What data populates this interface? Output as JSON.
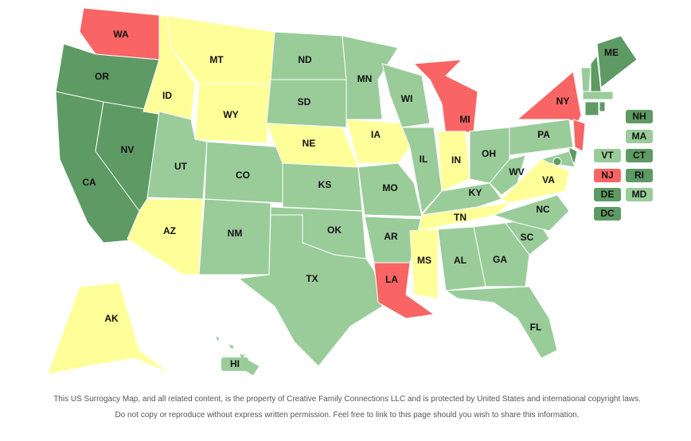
{
  "states": [
    {
      "label": "WA",
      "color": "#f96464"
    },
    {
      "label": "OR",
      "color": "#5e9a64"
    },
    {
      "label": "CA",
      "color": "#5e9a64"
    },
    {
      "label": "NV",
      "color": "#5e9a64"
    },
    {
      "label": "ID",
      "color": "#ffff99"
    },
    {
      "label": "MT",
      "color": "#ffff99"
    },
    {
      "label": "WY",
      "color": "#ffff99"
    },
    {
      "label": "UT",
      "color": "#99cc99"
    },
    {
      "label": "AZ",
      "color": "#ffff99"
    },
    {
      "label": "CO",
      "color": "#99cc99"
    },
    {
      "label": "NM",
      "color": "#99cc99"
    },
    {
      "label": "ND",
      "color": "#99cc99"
    },
    {
      "label": "SD",
      "color": "#99cc99"
    },
    {
      "label": "NE",
      "color": "#ffff99"
    },
    {
      "label": "KS",
      "color": "#99cc99"
    },
    {
      "label": "OK",
      "color": "#99cc99"
    },
    {
      "label": "TX",
      "color": "#99cc99"
    },
    {
      "label": "MN",
      "color": "#99cc99"
    },
    {
      "label": "IA",
      "color": "#ffff99"
    },
    {
      "label": "MO",
      "color": "#99cc99"
    },
    {
      "label": "AR",
      "color": "#99cc99"
    },
    {
      "label": "LA",
      "color": "#f96464"
    },
    {
      "label": "WI",
      "color": "#99cc99"
    },
    {
      "label": "IL",
      "color": "#99cc99"
    },
    {
      "label": "MI",
      "color": "#f96464"
    },
    {
      "label": "IN",
      "color": "#ffff99"
    },
    {
      "label": "OH",
      "color": "#99cc99"
    },
    {
      "label": "KY",
      "color": "#99cc99"
    },
    {
      "label": "TN",
      "color": "#ffff99"
    },
    {
      "label": "MS",
      "color": "#ffff99"
    },
    {
      "label": "AL",
      "color": "#99cc99"
    },
    {
      "label": "GA",
      "color": "#99cc99"
    },
    {
      "label": "FL",
      "color": "#99cc99"
    },
    {
      "label": "SC",
      "color": "#99cc99"
    },
    {
      "label": "NC",
      "color": "#99cc99"
    },
    {
      "label": "VA",
      "color": "#ffff99"
    },
    {
      "label": "WV",
      "color": "#99cc99"
    },
    {
      "label": "PA",
      "color": "#99cc99"
    },
    {
      "label": "NY",
      "color": "#f96464"
    },
    {
      "label": "ME",
      "color": "#5e9a64"
    },
    {
      "label": "AK",
      "color": "#ffff99"
    }
  ],
  "callouts": [
    {
      "label": "NH",
      "color": "#5e9a64"
    },
    {
      "label": "MA",
      "color": "#99cc99"
    },
    {
      "label": "VT",
      "color": "#99cc99"
    },
    {
      "label": "CT",
      "color": "#5e9a64"
    },
    {
      "label": "NJ",
      "color": "#f96464"
    },
    {
      "label": "RI",
      "color": "#5e9a64"
    },
    {
      "label": "DE",
      "color": "#5e9a64"
    },
    {
      "label": "MD",
      "color": "#99cc99"
    },
    {
      "label": "DC",
      "color": "#5e9a64"
    },
    {
      "label": "HI",
      "color": "#99cc99"
    }
  ],
  "footer": [
    "This US Surrogacy Map, and all related content, is the property of Creative Family Connections LLC and is protected by United States and international copyright laws.",
    "Do not copy or reproduce without express written permission. Feel free to link to this page should you wish to share this information."
  ]
}
